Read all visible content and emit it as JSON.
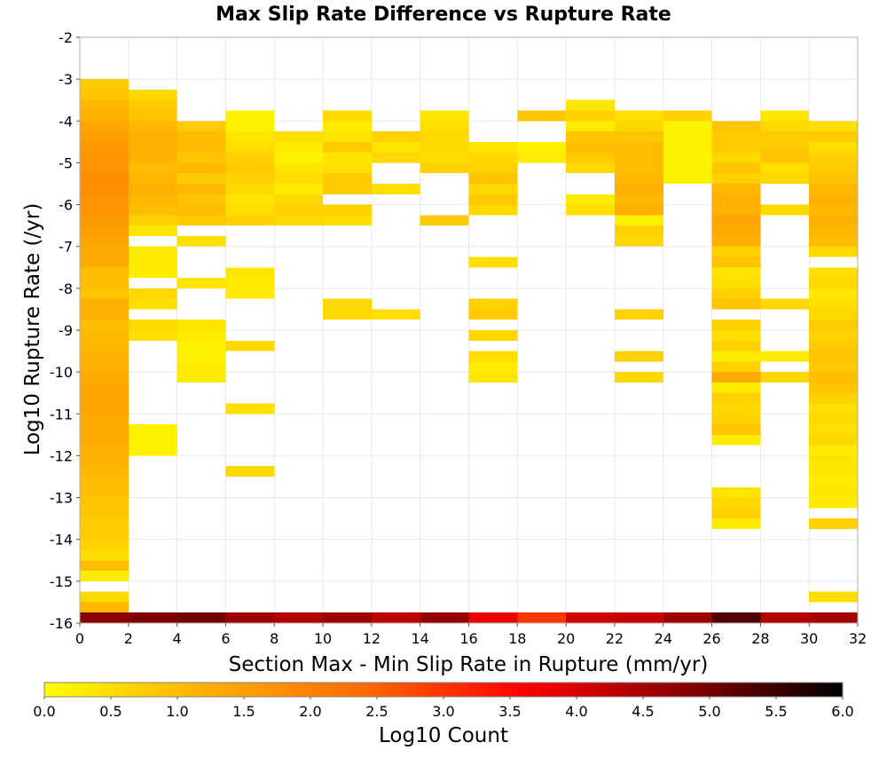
{
  "chart_data": {
    "type": "heatmap",
    "title": "Max Slip Rate Difference vs Rupture Rate",
    "xlabel": "Section Max - Min Slip Rate in Rupture (mm/yr)",
    "ylabel": "Log10 Rupture Rate (/yr)",
    "xlim": [
      0,
      32
    ],
    "ylim": [
      -16,
      -2
    ],
    "x_ticks": [
      "0",
      "2",
      "4",
      "6",
      "8",
      "10",
      "12",
      "14",
      "16",
      "18",
      "20",
      "22",
      "24",
      "26",
      "28",
      "30",
      "32"
    ],
    "y_ticks": [
      "-2",
      "-3",
      "-4",
      "-5",
      "-6",
      "-7",
      "-8",
      "-9",
      "-10",
      "-11",
      "-12",
      "-13",
      "-14",
      "-15",
      "-16"
    ],
    "x_bin_width": 2,
    "y_bin_width": 0.25,
    "grid": true,
    "colorbar": {
      "label": "Log10 Count",
      "range": [
        0,
        6
      ],
      "ticks": [
        "0.0",
        "0.5",
        "1.0",
        "1.5",
        "2.0",
        "2.5",
        "3.0",
        "3.5",
        "4.0",
        "4.5",
        "5.0",
        "5.5",
        "6.0"
      ],
      "colormap": [
        "#ffff00",
        "#ffb000",
        "#ff6a00",
        "#ff0000",
        "#8a0000",
        "#000000"
      ]
    },
    "columns": [
      {
        "x": 1,
        "cells": [
          [
            -16,
            4.8
          ],
          [
            -15.75,
            1.1
          ],
          [
            -15.5,
            0.6
          ],
          [
            -15,
            0.3
          ],
          [
            -14.75,
            1.0
          ],
          [
            -14.5,
            0.5
          ],
          [
            -14.25,
            0.7
          ],
          [
            -14,
            0.8
          ],
          [
            -13.75,
            0.8
          ],
          [
            -13.5,
            0.9
          ],
          [
            -13.25,
            0.9
          ],
          [
            -13,
            1.0
          ],
          [
            -12.75,
            1.0
          ],
          [
            -12.5,
            1.1
          ],
          [
            -12.25,
            1.2
          ],
          [
            -12,
            1.2
          ],
          [
            -11.75,
            1.3
          ],
          [
            -11.5,
            1.3
          ],
          [
            -11.25,
            1.3
          ],
          [
            -11,
            1.4
          ],
          [
            -10.75,
            1.4
          ],
          [
            -10.5,
            1.4
          ],
          [
            -10.25,
            1.3
          ],
          [
            -10,
            1.2
          ],
          [
            -9.75,
            1.2
          ],
          [
            -9.5,
            1.1
          ],
          [
            -9.25,
            1.1
          ],
          [
            -9,
            1.0
          ],
          [
            -8.75,
            1.2
          ],
          [
            -8.5,
            1.2
          ],
          [
            -8.25,
            0.9
          ],
          [
            -8,
            1.0
          ],
          [
            -7.75,
            1.0
          ],
          [
            -7.5,
            1.3
          ],
          [
            -7.25,
            1.3
          ],
          [
            -7,
            1.4
          ],
          [
            -6.75,
            1.5
          ],
          [
            -6.5,
            1.6
          ],
          [
            -6.25,
            1.7
          ],
          [
            -6,
            1.7
          ],
          [
            -5.75,
            1.8
          ],
          [
            -5.5,
            1.8
          ],
          [
            -5.25,
            1.7
          ],
          [
            -5,
            1.7
          ],
          [
            -4.75,
            1.6
          ],
          [
            -4.5,
            1.5
          ],
          [
            -4.25,
            1.4
          ],
          [
            -4,
            1.2
          ],
          [
            -3.75,
            1.1
          ],
          [
            -3.5,
            0.9
          ],
          [
            -3.25,
            0.8
          ]
        ]
      },
      {
        "x": 3,
        "cells": [
          [
            -16,
            4.9
          ],
          [
            -12,
            0.2
          ],
          [
            -11.75,
            0.2
          ],
          [
            -11.5,
            0.2
          ],
          [
            -9.25,
            0.5
          ],
          [
            -9,
            0.6
          ],
          [
            -8.5,
            0.5
          ],
          [
            -8.25,
            0.6
          ],
          [
            -7.75,
            0.3
          ],
          [
            -7.5,
            0.3
          ],
          [
            -7.25,
            0.3
          ],
          [
            -6.75,
            0.4
          ],
          [
            -6.5,
            0.7
          ],
          [
            -6.25,
            1.0
          ],
          [
            -6,
            1.1
          ],
          [
            -5.75,
            1.2
          ],
          [
            -5.5,
            1.1
          ],
          [
            -5.25,
            1.0
          ],
          [
            -5,
            1.2
          ],
          [
            -4.75,
            1.2
          ],
          [
            -4.5,
            1.2
          ],
          [
            -4.25,
            1.1
          ],
          [
            -4,
            0.9
          ],
          [
            -3.75,
            0.8
          ],
          [
            -3.5,
            0.6
          ]
        ]
      },
      {
        "x": 5,
        "cells": [
          [
            -16,
            5.0
          ],
          [
            -10.25,
            0.3
          ],
          [
            -10,
            0.3
          ],
          [
            -9.75,
            0.2
          ],
          [
            -9.5,
            0.2
          ],
          [
            -9.25,
            0.3
          ],
          [
            -9,
            0.4
          ],
          [
            -8,
            0.4
          ],
          [
            -7,
            0.5
          ],
          [
            -6.5,
            0.8
          ],
          [
            -6.25,
            1.0
          ],
          [
            -6,
            0.9
          ],
          [
            -5.75,
            1.1
          ],
          [
            -5.5,
            0.8
          ],
          [
            -5.25,
            1.1
          ],
          [
            -5,
            0.9
          ],
          [
            -4.75,
            1.0
          ],
          [
            -4.5,
            1.0
          ],
          [
            -4.25,
            0.8
          ]
        ]
      },
      {
        "x": 7,
        "cells": [
          [
            -16,
            4.6
          ],
          [
            -12.5,
            0.6
          ],
          [
            -11,
            0.5
          ],
          [
            -9.5,
            0.6
          ],
          [
            -8.25,
            0.3
          ],
          [
            -8,
            0.3
          ],
          [
            -7.75,
            0.4
          ],
          [
            -6.5,
            0.7
          ],
          [
            -6.25,
            0.5
          ],
          [
            -6,
            0.4
          ],
          [
            -5.75,
            0.6
          ],
          [
            -5.5,
            0.7
          ],
          [
            -5.25,
            0.8
          ],
          [
            -5,
            0.7
          ],
          [
            -4.75,
            0.5
          ],
          [
            -4.5,
            0.4
          ],
          [
            -4.25,
            0.2
          ],
          [
            -4,
            0.2
          ]
        ]
      },
      {
        "x": 9,
        "cells": [
          [
            -16,
            4.4
          ],
          [
            -6.5,
            0.6
          ],
          [
            -6.25,
            0.7
          ],
          [
            -6,
            0.6
          ],
          [
            -5.75,
            0.3
          ],
          [
            -5.5,
            0.5
          ],
          [
            -5.25,
            0.4
          ],
          [
            -5,
            0.2
          ],
          [
            -4.75,
            0.3
          ],
          [
            -4.5,
            0.5
          ]
        ]
      },
      {
        "x": 11,
        "cells": [
          [
            -16,
            4.6
          ],
          [
            -8.75,
            0.6
          ],
          [
            -8.5,
            0.6
          ],
          [
            -6.5,
            0.5
          ],
          [
            -6.25,
            0.7
          ],
          [
            -5.75,
            0.8
          ],
          [
            -5.5,
            0.8
          ],
          [
            -5.25,
            0.5
          ],
          [
            -5,
            0.4
          ],
          [
            -4.75,
            0.8
          ],
          [
            -4.5,
            0.4
          ],
          [
            -4.25,
            0.3
          ],
          [
            -4,
            0.6
          ]
        ]
      },
      {
        "x": 13,
        "cells": [
          [
            -16,
            4.3
          ],
          [
            -8.75,
            0.5
          ],
          [
            -5.75,
            0.5
          ],
          [
            -5,
            0.6
          ],
          [
            -4.75,
            0.4
          ],
          [
            -4.5,
            0.7
          ]
        ]
      },
      {
        "x": 15,
        "cells": [
          [
            -16,
            4.7
          ],
          [
            -6.5,
            0.8
          ],
          [
            -5.25,
            0.7
          ],
          [
            -5,
            0.5
          ],
          [
            -4.75,
            0.6
          ],
          [
            -4.5,
            0.6
          ],
          [
            -4.25,
            0.5
          ],
          [
            -4,
            0.4
          ]
        ]
      },
      {
        "x": 17,
        "cells": [
          [
            -16,
            3.8
          ],
          [
            -10.25,
            0.4
          ],
          [
            -10,
            0.3
          ],
          [
            -9.75,
            0.5
          ],
          [
            -9.25,
            0.6
          ],
          [
            -8.75,
            0.8
          ],
          [
            -8.5,
            0.7
          ],
          [
            -7.5,
            0.5
          ],
          [
            -6.25,
            0.6
          ],
          [
            -6,
            0.8
          ],
          [
            -5.75,
            0.6
          ],
          [
            -5.5,
            0.9
          ],
          [
            -5.25,
            0.7
          ],
          [
            -5,
            0.6
          ],
          [
            -4.75,
            0.4
          ]
        ]
      },
      {
        "x": 19,
        "cells": [
          [
            -16,
            3.0
          ],
          [
            -5,
            0.3
          ],
          [
            -4.75,
            0.2
          ],
          [
            -4,
            0.9
          ]
        ]
      },
      {
        "x": 21,
        "cells": [
          [
            -16,
            4.1
          ],
          [
            -6.25,
            0.5
          ],
          [
            -6,
            0.3
          ],
          [
            -5.25,
            0.6
          ],
          [
            -5,
            0.8
          ],
          [
            -4.75,
            1.0
          ],
          [
            -4.5,
            0.9
          ],
          [
            -4.25,
            0.3
          ],
          [
            -4,
            0.7
          ],
          [
            -3.75,
            0.4
          ]
        ]
      },
      {
        "x": 23,
        "cells": [
          [
            -16,
            4.2
          ],
          [
            -10.25,
            0.6
          ],
          [
            -9.75,
            0.7
          ],
          [
            -8.75,
            0.7
          ],
          [
            -7,
            0.6
          ],
          [
            -6.75,
            0.7
          ],
          [
            -6.5,
            0.2
          ],
          [
            -6.25,
            1.2
          ],
          [
            -6,
            1.1
          ],
          [
            -5.75,
            1.2
          ],
          [
            -5.5,
            1.1
          ],
          [
            -5.25,
            1.0
          ],
          [
            -5,
            1.0
          ],
          [
            -4.75,
            1.0
          ],
          [
            -4.5,
            0.9
          ],
          [
            -4.25,
            0.6
          ],
          [
            -4,
            0.5
          ]
        ]
      },
      {
        "x": 25,
        "cells": [
          [
            -16,
            4.6
          ],
          [
            -5.5,
            0.2
          ],
          [
            -5.25,
            0.2
          ],
          [
            -5,
            0.2
          ],
          [
            -4.75,
            0.2
          ],
          [
            -4.5,
            0.2
          ],
          [
            -4.25,
            0.2
          ],
          [
            -4,
            0.7
          ]
        ]
      },
      {
        "x": 27,
        "cells": [
          [
            -16,
            5.3
          ],
          [
            -13.75,
            0.3
          ],
          [
            -13.5,
            0.7
          ],
          [
            -13.25,
            0.6
          ],
          [
            -13,
            0.4
          ],
          [
            -11.75,
            0.3
          ],
          [
            -11.5,
            0.9
          ],
          [
            -11.25,
            0.7
          ],
          [
            -11,
            0.6
          ],
          [
            -10.75,
            0.7
          ],
          [
            -10.5,
            0.3
          ],
          [
            -10.25,
            1.3
          ],
          [
            -10,
            0.7
          ],
          [
            -9.75,
            0.3
          ],
          [
            -9.5,
            0.7
          ],
          [
            -9.25,
            0.5
          ],
          [
            -9,
            0.7
          ],
          [
            -8.5,
            0.9
          ],
          [
            -8.25,
            0.7
          ],
          [
            -8,
            0.5
          ],
          [
            -7.75,
            0.4
          ],
          [
            -7.5,
            0.9
          ],
          [
            -7.25,
            0.7
          ],
          [
            -7,
            1.2
          ],
          [
            -6.75,
            1.3
          ],
          [
            -6.5,
            1.4
          ],
          [
            -6.25,
            1.2
          ],
          [
            -6,
            1.2
          ],
          [
            -5.75,
            1.1
          ],
          [
            -5.5,
            0.7
          ],
          [
            -5.25,
            0.9
          ],
          [
            -5,
            0.6
          ],
          [
            -4.75,
            0.8
          ],
          [
            -4.5,
            0.8
          ],
          [
            -4.25,
            0.9
          ]
        ]
      },
      {
        "x": 29,
        "cells": [
          [
            -16,
            4.4
          ],
          [
            -10.25,
            0.6
          ],
          [
            -9.75,
            0.3
          ],
          [
            -8.5,
            0.6
          ],
          [
            -6.25,
            0.6
          ],
          [
            -5.5,
            0.6
          ],
          [
            -5.25,
            0.5
          ],
          [
            -5,
            0.9
          ],
          [
            -4.75,
            0.8
          ],
          [
            -4.5,
            0.8
          ],
          [
            -4.25,
            0.6
          ],
          [
            -4,
            0.4
          ]
        ]
      },
      {
        "x": 31,
        "cells": [
          [
            -16,
            4.5
          ],
          [
            -15.5,
            0.5
          ],
          [
            -13.75,
            0.7
          ],
          [
            -13.25,
            0.3
          ],
          [
            -13,
            0.4
          ],
          [
            -12.75,
            0.3
          ],
          [
            -12.5,
            0.4
          ],
          [
            -12.25,
            0.4
          ],
          [
            -12,
            0.3
          ],
          [
            -11.75,
            0.6
          ],
          [
            -11.5,
            0.5
          ],
          [
            -11.25,
            0.6
          ],
          [
            -11,
            0.5
          ],
          [
            -10.75,
            0.7
          ],
          [
            -10.5,
            0.9
          ],
          [
            -10.25,
            1.0
          ],
          [
            -10,
            0.8
          ],
          [
            -9.75,
            0.9
          ],
          [
            -9.5,
            0.8
          ],
          [
            -9.25,
            0.7
          ],
          [
            -9,
            0.8
          ],
          [
            -8.75,
            0.6
          ],
          [
            -8.5,
            0.5
          ],
          [
            -8.25,
            0.4
          ],
          [
            -8,
            0.6
          ],
          [
            -7.75,
            0.5
          ],
          [
            -7.25,
            0.6
          ],
          [
            -7,
            1.0
          ],
          [
            -6.75,
            1.1
          ],
          [
            -6.5,
            1.2
          ],
          [
            -6.25,
            1.1
          ],
          [
            -6,
            1.2
          ],
          [
            -5.75,
            1.1
          ],
          [
            -5.5,
            0.9
          ],
          [
            -5.25,
            0.8
          ],
          [
            -5,
            0.7
          ],
          [
            -4.75,
            0.5
          ],
          [
            -4.5,
            0.8
          ],
          [
            -4.25,
            0.5
          ]
        ]
      }
    ]
  }
}
